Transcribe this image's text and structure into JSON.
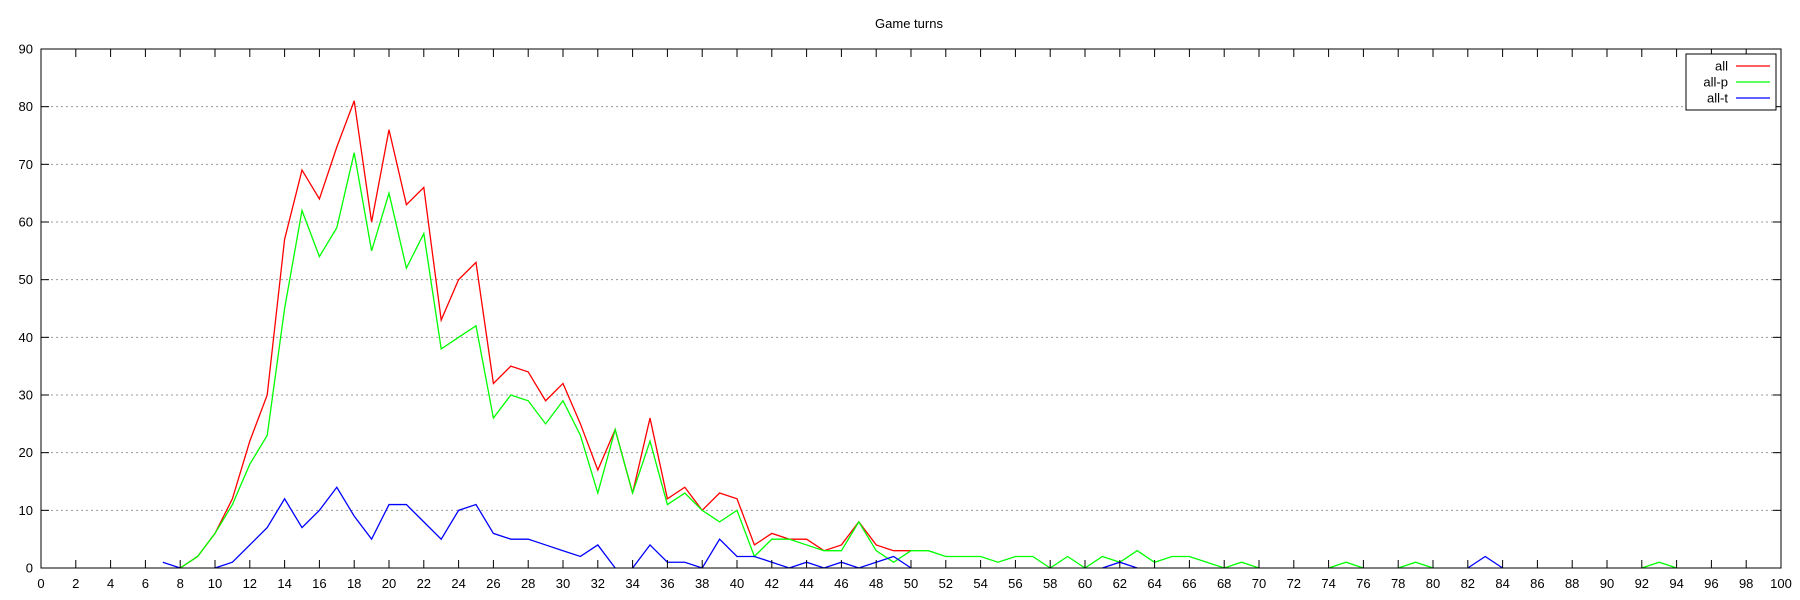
{
  "chart_data": {
    "type": "line",
    "title": "Game turns",
    "xlabel": "",
    "ylabel": "",
    "xlim": [
      0,
      100
    ],
    "ylim": [
      0,
      90
    ],
    "xticks": [
      0,
      2,
      4,
      6,
      8,
      10,
      12,
      14,
      16,
      18,
      20,
      22,
      24,
      26,
      28,
      30,
      32,
      34,
      36,
      38,
      40,
      42,
      44,
      46,
      48,
      50,
      52,
      54,
      56,
      58,
      60,
      62,
      64,
      66,
      68,
      70,
      72,
      74,
      76,
      78,
      80,
      82,
      84,
      86,
      88,
      90,
      92,
      94,
      96,
      98,
      100
    ],
    "yticks": [
      0,
      10,
      20,
      30,
      40,
      50,
      60,
      70,
      80,
      90
    ],
    "grid": "horizontal dotted",
    "legend_position": "top-right",
    "series": [
      {
        "name": "all",
        "color": "#ff0000",
        "points": [
          [
            8,
            0
          ],
          [
            9,
            2
          ],
          [
            10,
            6
          ],
          [
            11,
            12
          ],
          [
            12,
            22
          ],
          [
            13,
            30
          ],
          [
            14,
            57
          ],
          [
            15,
            69
          ],
          [
            16,
            64
          ],
          [
            17,
            73
          ],
          [
            18,
            81
          ],
          [
            19,
            60
          ],
          [
            20,
            76
          ],
          [
            21,
            63
          ],
          [
            22,
            66
          ],
          [
            23,
            43
          ],
          [
            24,
            50
          ],
          [
            25,
            53
          ],
          [
            26,
            32
          ],
          [
            27,
            35
          ],
          [
            28,
            34
          ],
          [
            29,
            29
          ],
          [
            30,
            32
          ],
          [
            31,
            25
          ],
          [
            32,
            17
          ],
          [
            33,
            24
          ],
          [
            34,
            13
          ],
          [
            35,
            26
          ],
          [
            36,
            12
          ],
          [
            37,
            14
          ],
          [
            38,
            10
          ],
          [
            39,
            13
          ],
          [
            40,
            12
          ],
          [
            41,
            4
          ],
          [
            42,
            6
          ],
          [
            43,
            5
          ],
          [
            44,
            5
          ],
          [
            45,
            3
          ],
          [
            46,
            4
          ],
          [
            47,
            8
          ],
          [
            48,
            4
          ],
          [
            49,
            3
          ],
          [
            50,
            3
          ]
        ]
      },
      {
        "name": "all-p",
        "color": "#00ff00",
        "segments": [
          [
            [
              8,
              0
            ],
            [
              9,
              2
            ],
            [
              10,
              6
            ],
            [
              11,
              11
            ],
            [
              12,
              18
            ],
            [
              13,
              23
            ],
            [
              14,
              45
            ],
            [
              15,
              62
            ],
            [
              16,
              54
            ],
            [
              17,
              59
            ],
            [
              18,
              72
            ],
            [
              19,
              55
            ],
            [
              20,
              65
            ],
            [
              21,
              52
            ],
            [
              22,
              58
            ],
            [
              23,
              38
            ],
            [
              24,
              40
            ],
            [
              25,
              42
            ],
            [
              26,
              26
            ],
            [
              27,
              30
            ],
            [
              28,
              29
            ],
            [
              29,
              25
            ],
            [
              30,
              29
            ],
            [
              31,
              23
            ],
            [
              32,
              13
            ],
            [
              33,
              24
            ],
            [
              34,
              13
            ],
            [
              35,
              22
            ],
            [
              36,
              11
            ],
            [
              37,
              13
            ],
            [
              38,
              10
            ],
            [
              39,
              8
            ],
            [
              40,
              10
            ],
            [
              41,
              2
            ],
            [
              42,
              5
            ],
            [
              43,
              5
            ],
            [
              44,
              4
            ],
            [
              45,
              3
            ],
            [
              46,
              3
            ],
            [
              47,
              8
            ],
            [
              48,
              3
            ],
            [
              49,
              1
            ],
            [
              50,
              3
            ],
            [
              51,
              3
            ],
            [
              52,
              2
            ],
            [
              53,
              2
            ],
            [
              54,
              2
            ],
            [
              55,
              1
            ],
            [
              56,
              2
            ],
            [
              57,
              2
            ],
            [
              58,
              0
            ],
            [
              59,
              2
            ],
            [
              60,
              0
            ],
            [
              61,
              2
            ],
            [
              62,
              1
            ],
            [
              63,
              3
            ],
            [
              64,
              1
            ],
            [
              65,
              2
            ],
            [
              66,
              2
            ],
            [
              67,
              1
            ],
            [
              68,
              0
            ],
            [
              69,
              1
            ],
            [
              70,
              0
            ]
          ],
          [
            [
              74,
              0
            ],
            [
              75,
              1
            ],
            [
              76,
              0
            ]
          ],
          [
            [
              78,
              0
            ],
            [
              79,
              1
            ],
            [
              80,
              0
            ]
          ],
          [
            [
              92,
              0
            ],
            [
              93,
              1
            ],
            [
              94,
              0
            ]
          ]
        ]
      },
      {
        "name": "all-t",
        "color": "#0000ff",
        "segments": [
          [
            [
              7,
              1
            ],
            [
              8,
              0
            ]
          ],
          [
            [
              10,
              0
            ],
            [
              11,
              1
            ],
            [
              12,
              4
            ],
            [
              13,
              7
            ],
            [
              14,
              12
            ],
            [
              15,
              7
            ],
            [
              16,
              10
            ],
            [
              17,
              14
            ],
            [
              18,
              9
            ],
            [
              19,
              5
            ],
            [
              20,
              11
            ],
            [
              21,
              11
            ],
            [
              22,
              8
            ],
            [
              23,
              5
            ],
            [
              24,
              10
            ],
            [
              25,
              11
            ],
            [
              26,
              6
            ],
            [
              27,
              5
            ],
            [
              28,
              5
            ],
            [
              29,
              4
            ],
            [
              30,
              3
            ],
            [
              31,
              2
            ],
            [
              32,
              4
            ],
            [
              33,
              0
            ]
          ],
          [
            [
              34,
              0
            ],
            [
              35,
              4
            ],
            [
              36,
              1
            ],
            [
              37,
              1
            ],
            [
              38,
              0
            ],
            [
              39,
              5
            ],
            [
              40,
              2
            ],
            [
              41,
              2
            ],
            [
              42,
              1
            ],
            [
              43,
              0
            ],
            [
              44,
              1
            ],
            [
              45,
              0
            ],
            [
              46,
              1
            ],
            [
              47,
              0
            ],
            [
              48,
              1
            ],
            [
              49,
              2
            ],
            [
              50,
              0
            ]
          ],
          [
            [
              61,
              0
            ],
            [
              62,
              1
            ],
            [
              63,
              0
            ]
          ],
          [
            [
              82,
              0
            ],
            [
              83,
              2
            ],
            [
              84,
              0
            ]
          ]
        ]
      }
    ]
  }
}
